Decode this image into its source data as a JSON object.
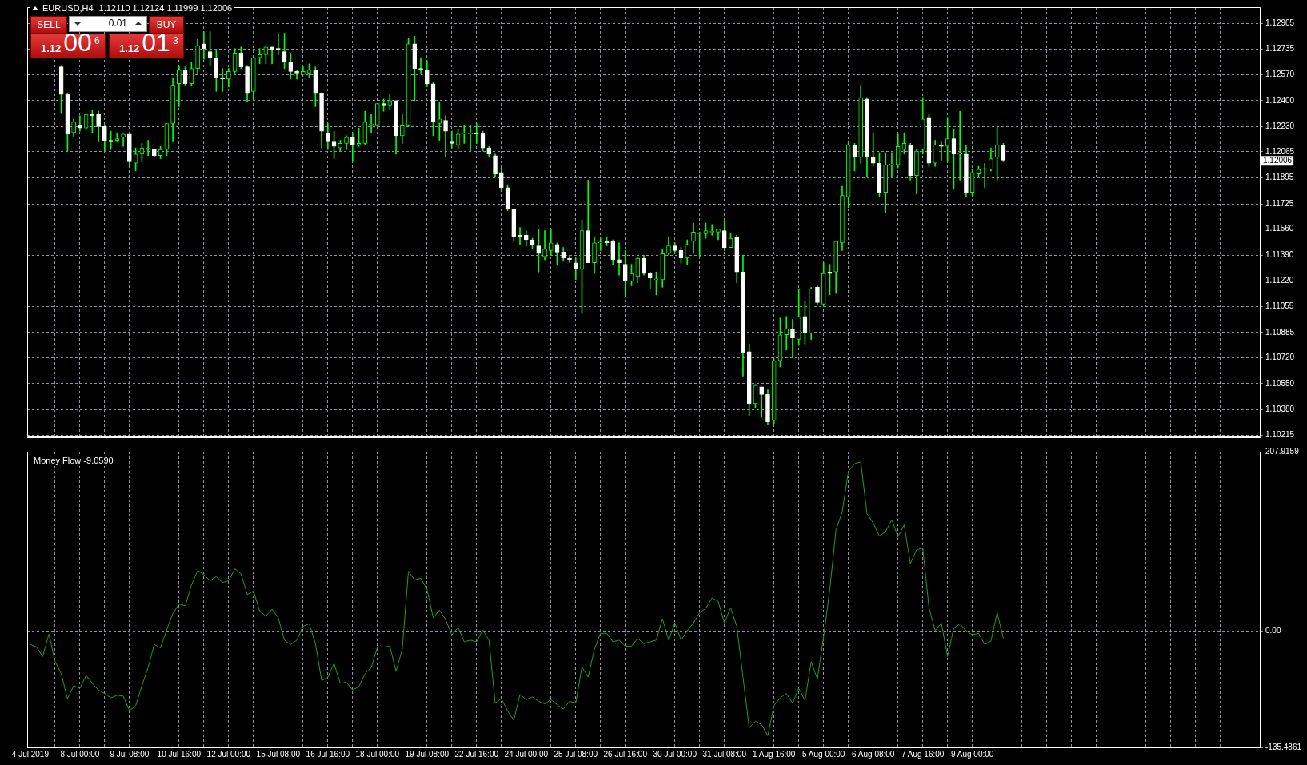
{
  "chart_data": [
    {
      "type": "candlestick",
      "title": "EURUSD,H4",
      "subtitle": "1.12110 1.12124 1.11999 1.12006",
      "color": "#00ff00",
      "categories": [
        null,
        null,
        null,
        null,
        null,
        null,
        null,
        null,
        null,
        null,
        null,
        null,
        null,
        null,
        null,
        null,
        null,
        null,
        null,
        null,
        null,
        null,
        null,
        null,
        null,
        null,
        null,
        null,
        null,
        null,
        null,
        null,
        null,
        null,
        null,
        null,
        null,
        null,
        null,
        null,
        null,
        null,
        null,
        null,
        null,
        null,
        null,
        null,
        null,
        null,
        null,
        null,
        null,
        null,
        null,
        null,
        null,
        null,
        null,
        null,
        null,
        null,
        null,
        null,
        null,
        null,
        null,
        null,
        null,
        null,
        null,
        null,
        null,
        null,
        null,
        null,
        null,
        null,
        null,
        null,
        null,
        null,
        null,
        null,
        null,
        null,
        null,
        null,
        null,
        null,
        null,
        null,
        null,
        null,
        null,
        null,
        null,
        null,
        null,
        null,
        null,
        null,
        null,
        null,
        null,
        null,
        null,
        null,
        null,
        null,
        null,
        null,
        null,
        null,
        null,
        null,
        null,
        null,
        null,
        null,
        null,
        null,
        null,
        null,
        null,
        null,
        null,
        null,
        null,
        null,
        null,
        null,
        null,
        null,
        null,
        null,
        null,
        null,
        null,
        null,
        null,
        null,
        null,
        null,
        null,
        null,
        null,
        null,
        null,
        null,
        null,
        null,
        null,
        null,
        null,
        null,
        null,
        null,
        null,
        null,
        null,
        null,
        null,
        null,
        null,
        null,
        null,
        null,
        null,
        null,
        null,
        null,
        null,
        null,
        null,
        null,
        null,
        null,
        null,
        null,
        null,
        null,
        null,
        null,
        null,
        null,
        null,
        null,
        null,
        null,
        null,
        null,
        null,
        null,
        null,
        null,
        null,
        null,
        null
      ],
      "ohlc": [
        null,
        null,
        null,
        null,
        null,
        [
          1.1262,
          1.1263,
          1.1232,
          1.1244
        ],
        [
          1.1244,
          1.1245,
          1.1207,
          1.1218
        ],
        [
          1.1219,
          1.1228,
          1.1216,
          1.1226
        ],
        [
          1.1224,
          1.123,
          1.122,
          1.1222
        ],
        [
          1.1222,
          1.1231,
          1.1221,
          1.1231
        ],
        [
          1.1231,
          1.1234,
          1.1219,
          1.123
        ],
        [
          1.1231,
          1.1233,
          1.1213,
          1.1223
        ],
        [
          1.1223,
          1.1224,
          1.1207,
          1.1214
        ],
        [
          1.1214,
          1.122,
          1.1208,
          1.1213
        ],
        [
          1.1214,
          1.1219,
          1.1213,
          1.1215
        ],
        [
          1.1216,
          1.1218,
          1.121,
          1.1218
        ],
        [
          1.1218,
          1.1218,
          1.1197,
          1.12
        ],
        [
          1.1199,
          1.1209,
          1.1194,
          1.1205
        ],
        [
          1.1205,
          1.1212,
          1.12,
          1.1209
        ],
        [
          1.1208,
          1.1214,
          1.1204,
          1.1209
        ],
        [
          1.1208,
          1.1208,
          1.1203,
          1.1204
        ],
        [
          1.1204,
          1.121,
          1.1202,
          1.1208
        ],
        [
          1.1208,
          1.1225,
          1.1204,
          1.1225
        ],
        [
          1.1225,
          1.1255,
          1.1213,
          1.125
        ],
        [
          1.1251,
          1.1263,
          1.1236,
          1.126
        ],
        [
          1.126,
          1.1262,
          1.125,
          1.1251
        ],
        [
          1.1251,
          1.1265,
          1.125,
          1.1261
        ],
        [
          1.1261,
          1.128,
          1.1258,
          1.1276
        ],
        [
          1.1277,
          1.1285,
          1.1267,
          1.1274
        ],
        [
          1.1272,
          1.1285,
          1.1263,
          1.1268
        ],
        [
          1.1268,
          1.1273,
          1.1246,
          1.1255
        ],
        [
          1.1255,
          1.1261,
          1.1246,
          1.1254
        ],
        [
          1.1254,
          1.1261,
          1.1249,
          1.1259
        ],
        [
          1.1259,
          1.1274,
          1.1258,
          1.1271
        ],
        [
          1.1271,
          1.1275,
          1.1261,
          1.1262
        ],
        [
          1.1262,
          1.1263,
          1.1239,
          1.1245
        ],
        [
          1.1246,
          1.1268,
          1.124,
          1.1268
        ],
        [
          1.1268,
          1.1274,
          1.1264,
          1.127
        ],
        [
          1.127,
          1.1275,
          1.1264,
          1.1275
        ],
        [
          1.1275,
          1.1275,
          1.1264,
          1.1273
        ],
        [
          1.1274,
          1.1284,
          1.127,
          1.1273
        ],
        [
          1.1272,
          1.1284,
          1.1261,
          1.1265
        ],
        [
          1.1265,
          1.1271,
          1.1254,
          1.1259
        ],
        [
          1.1259,
          1.126,
          1.1254,
          1.1258
        ],
        [
          1.1257,
          1.1262,
          1.1257,
          1.1259
        ],
        [
          1.1258,
          1.1264,
          1.1255,
          1.126
        ],
        [
          1.126,
          1.1262,
          1.1236,
          1.1245
        ],
        [
          1.1245,
          1.1245,
          1.1209,
          1.122
        ],
        [
          1.1219,
          1.1225,
          1.1208,
          1.1213
        ],
        [
          1.1213,
          1.122,
          1.1202,
          1.121
        ],
        [
          1.1209,
          1.1214,
          1.1207,
          1.1212
        ],
        [
          1.1212,
          1.1217,
          1.1208,
          1.1216
        ],
        [
          1.1216,
          1.1219,
          1.12,
          1.1211
        ],
        [
          1.1211,
          1.1222,
          1.121,
          1.1212
        ],
        [
          1.1212,
          1.1233,
          1.1211,
          1.1226
        ],
        [
          1.1224,
          1.1231,
          1.1219,
          1.1224
        ],
        [
          1.1224,
          1.1238,
          1.1223,
          1.1238
        ],
        [
          1.1238,
          1.1241,
          1.1233,
          1.1237
        ],
        [
          1.1237,
          1.1244,
          1.1234,
          1.124
        ],
        [
          1.124,
          1.124,
          1.1205,
          1.1217
        ],
        [
          1.1217,
          1.1231,
          1.1212,
          1.1224
        ],
        [
          1.1224,
          1.1281,
          1.1223,
          1.1277
        ],
        [
          1.1277,
          1.1282,
          1.124,
          1.1261
        ],
        [
          1.1261,
          1.1268,
          1.1258,
          1.126
        ],
        [
          1.126,
          1.1266,
          1.1249,
          1.1251
        ],
        [
          1.1251,
          1.1252,
          1.1217,
          1.1226
        ],
        [
          1.1225,
          1.1239,
          1.1214,
          1.1228
        ],
        [
          1.1227,
          1.123,
          1.1203,
          1.122
        ],
        [
          1.1213,
          1.122,
          1.1209,
          1.1212
        ],
        [
          1.1211,
          1.1221,
          1.1208,
          1.1218
        ],
        [
          1.1218,
          1.1224,
          1.1212,
          1.1218
        ],
        [
          1.1218,
          1.1224,
          1.1207,
          1.1218
        ],
        [
          1.1219,
          1.1225,
          1.1212,
          1.1218
        ],
        [
          1.1219,
          1.122,
          1.1207,
          1.1209
        ],
        [
          1.1209,
          1.121,
          1.1203,
          1.1205
        ],
        [
          1.1204,
          1.1205,
          1.119,
          1.1192
        ],
        [
          1.1193,
          1.1196,
          1.1181,
          1.1183
        ],
        [
          1.1183,
          1.1185,
          1.1168,
          1.1169
        ],
        [
          1.1169,
          1.1169,
          1.1148,
          1.1151
        ],
        [
          1.1152,
          1.1157,
          1.1146,
          1.1151
        ],
        [
          1.1152,
          1.1155,
          1.1145,
          1.1149
        ],
        [
          1.1149,
          1.115,
          1.1143,
          1.1146
        ],
        [
          1.1145,
          1.1156,
          1.1128,
          1.114
        ],
        [
          1.1138,
          1.1155,
          1.1136,
          1.1143
        ],
        [
          1.1142,
          1.1156,
          1.1139,
          1.1147
        ],
        [
          1.1146,
          1.1147,
          1.1133,
          1.1141
        ],
        [
          1.1141,
          1.1144,
          1.1135,
          1.1137
        ],
        [
          1.1137,
          1.1139,
          1.1134,
          1.1136
        ],
        [
          1.1134,
          1.1137,
          1.1123,
          1.113
        ],
        [
          1.113,
          1.1162,
          1.1101,
          1.1155
        ],
        [
          1.1155,
          1.1188,
          1.1134,
          1.1134
        ],
        [
          1.1134,
          1.1151,
          1.1127,
          1.1147
        ],
        [
          1.1147,
          1.115,
          1.1142,
          1.1147
        ],
        [
          1.1148,
          1.1151,
          1.1145,
          1.1147
        ],
        [
          1.1148,
          1.1149,
          1.1133,
          1.1136
        ],
        [
          1.1136,
          1.1147,
          1.1126,
          1.1134
        ],
        [
          1.1133,
          1.1142,
          1.1112,
          1.1122
        ],
        [
          1.1122,
          1.1133,
          1.1119,
          1.1127
        ],
        [
          1.1125,
          1.1138,
          1.1121,
          1.1137
        ],
        [
          1.1137,
          1.1139,
          1.1126,
          1.1127
        ],
        [
          1.1127,
          1.1128,
          1.1117,
          1.1124
        ],
        [
          1.1123,
          1.1128,
          1.1113,
          1.1123
        ],
        [
          1.1123,
          1.1143,
          1.1118,
          1.114
        ],
        [
          1.114,
          1.1151,
          1.1139,
          1.1145
        ],
        [
          1.1145,
          1.1147,
          1.1141,
          1.1142
        ],
        [
          1.1142,
          1.1144,
          1.1134,
          1.1137
        ],
        [
          1.1137,
          1.1149,
          1.1133,
          1.1146
        ],
        [
          1.1148,
          1.116,
          1.114,
          1.1154
        ],
        [
          1.1153,
          1.1154,
          1.1138,
          1.1153
        ],
        [
          1.1153,
          1.116,
          1.115,
          1.1155
        ],
        [
          1.1154,
          1.1159,
          1.1152,
          1.1154
        ],
        [
          1.1154,
          1.1156,
          1.1149,
          1.1156
        ],
        [
          1.1155,
          1.1162,
          1.1142,
          1.1144
        ],
        [
          1.1144,
          1.1153,
          1.1144,
          1.115
        ],
        [
          1.1151,
          1.1152,
          1.1121,
          1.1128
        ],
        [
          1.1128,
          1.1139,
          1.106,
          1.1075
        ],
        [
          1.1076,
          1.1081,
          1.1034,
          1.1042
        ],
        [
          1.1042,
          1.1054,
          1.1039,
          1.1054
        ],
        [
          1.1053,
          1.1053,
          1.1033,
          1.1048
        ],
        [
          1.1048,
          1.1051,
          1.1028,
          1.103
        ],
        [
          1.1031,
          1.1071,
          1.1029,
          1.107
        ],
        [
          1.107,
          1.1098,
          1.1066,
          1.1087
        ],
        [
          1.1087,
          1.1099,
          1.1077,
          1.1091
        ],
        [
          1.1091,
          1.1097,
          1.1072,
          1.1085
        ],
        [
          1.1084,
          1.1117,
          1.108,
          1.1099
        ],
        [
          1.1099,
          1.1109,
          1.1081,
          1.1088
        ],
        [
          1.1088,
          1.1118,
          1.1084,
          1.1117
        ],
        [
          1.1118,
          1.1119,
          1.1107,
          1.1108
        ],
        [
          1.1107,
          1.1134,
          1.1106,
          1.1127
        ],
        [
          1.1128,
          1.1133,
          1.1113,
          1.1127
        ],
        [
          1.1128,
          1.1148,
          1.1114,
          1.1148
        ],
        [
          1.1147,
          1.1184,
          1.1142,
          1.1178
        ],
        [
          1.1177,
          1.1213,
          1.117,
          1.1211
        ],
        [
          1.1211,
          1.1212,
          1.1194,
          1.1203
        ],
        [
          1.1203,
          1.125,
          1.1199,
          1.1242
        ],
        [
          1.1241,
          1.1242,
          1.119,
          1.1203
        ],
        [
          1.1203,
          1.1219,
          1.1197,
          1.1199
        ],
        [
          1.1199,
          1.1206,
          1.1177,
          1.118
        ],
        [
          1.118,
          1.1206,
          1.1167,
          1.1198
        ],
        [
          1.1198,
          1.1206,
          1.119,
          1.1198
        ],
        [
          1.1198,
          1.1218,
          1.1196,
          1.121
        ],
        [
          1.1208,
          1.1219,
          1.1205,
          1.1212
        ],
        [
          1.1211,
          1.1212,
          1.1188,
          1.1191
        ],
        [
          1.1191,
          1.1208,
          1.1179,
          1.1207
        ],
        [
          1.1208,
          1.1242,
          1.1205,
          1.1228
        ],
        [
          1.1229,
          1.1231,
          1.1197,
          1.1199
        ],
        [
          1.1199,
          1.1214,
          1.1197,
          1.1211
        ],
        [
          1.1211,
          1.1213,
          1.1201,
          1.121
        ],
        [
          1.121,
          1.1229,
          1.12,
          1.1215
        ],
        [
          1.1215,
          1.1221,
          1.1182,
          1.1205
        ],
        [
          1.1205,
          1.1233,
          1.1188,
          1.1205
        ],
        [
          1.1205,
          1.1211,
          1.1177,
          1.118
        ],
        [
          1.118,
          1.1195,
          1.1178,
          1.1193
        ],
        [
          1.1192,
          1.1197,
          1.119,
          1.1195
        ],
        [
          1.1195,
          1.1199,
          1.1183,
          1.1195
        ],
        [
          1.1195,
          1.1209,
          1.1194,
          1.1202
        ],
        [
          1.1203,
          1.1223,
          1.1188,
          1.1211
        ],
        [
          1.1211,
          1.1212,
          1.12,
          1.1201
        ],
        null,
        null,
        null,
        null,
        null,
        null,
        null,
        null,
        null,
        null,
        null,
        null,
        null,
        null,
        null,
        null,
        null,
        null,
        null,
        null,
        null,
        null,
        null,
        null,
        null,
        null,
        null,
        null,
        null,
        null,
        null,
        null,
        null,
        null,
        null,
        null,
        null,
        null,
        null,
        null,
        null
      ],
      "colors": [
        null,
        null,
        null,
        null,
        null,
        "#ffffff",
        "#ffffff",
        "#00ff00",
        "#ffffff",
        "#00ff00",
        "#ffffff",
        "#ffffff",
        "#ffffff",
        "#ffffff",
        "#00ff00",
        "#00ff00",
        "#ffffff",
        "#00ff00",
        "#00ff00",
        "#00ff00",
        "#ffffff",
        "#00ff00",
        "#00ff00",
        "#00ff00",
        "#00ff00",
        "#ffffff",
        "#00ff00",
        "#00ff00",
        "#ffffff",
        "#ffffff",
        "#ffffff",
        "#ffffff",
        "#00ff00",
        "#00ff00",
        "#ffffff",
        "#ffffff",
        "#00ff00",
        "#00ff00",
        "#00ff00",
        "#ffffff",
        "#ffffff",
        "#ffffff",
        "#ffffff",
        "#ffffff",
        "#00ff00",
        "#00ff00",
        "#ffffff",
        "#ffffff",
        "#ffffff",
        "#ffffff",
        "#00ff00",
        "#00ff00",
        "#ffffff",
        "#00ff00",
        "#00ff00",
        "#00ff00",
        "#00ff00",
        "#ffffff",
        "#00ff00",
        "#ffffff",
        "#00ff00",
        "#00ff00",
        "#ffffff",
        "#ffffff",
        "#ffffff",
        "#ffffff",
        "#00ff00",
        "#ffffff",
        "#ffffff",
        "#00ff00",
        "#00ff00",
        "#00ff00",
        "#ffffff",
        "#ffffff",
        "#ffffff",
        "#ffffff",
        "#ffffff",
        "#ffffff",
        "#ffffff",
        "#ffffff",
        "#ffffff",
        "#ffffff",
        "#ffffff",
        "#00ff00",
        "#00ff00",
        "#ffffff",
        "#ffffff",
        "#ffffff",
        "#ffffff",
        "#00ff00",
        "#ffffff",
        "#00ff00",
        "#00ff00",
        "#ffffff",
        "#ffffff",
        "#ffffff",
        "#ffffff",
        "#00ff00",
        "#00ff00",
        "#ffffff",
        "#ffffff",
        "#00ff00",
        "#00ff00",
        "#00ff00",
        "#ffffff",
        "#ffffff",
        "#00ff00",
        "#00ff00",
        "#00ff00",
        "#00ff00",
        "#00ff00",
        "#00ff00",
        "#ffffff",
        "#00ff00",
        "#ffffff",
        "#ffffff",
        "#ffffff",
        "#00ff00",
        "#ffffff",
        "#ffffff",
        "#00ff00",
        "#00ff00",
        "#00ff00",
        "#ffffff",
        "#00ff00",
        "#ffffff",
        "#00ff00",
        "#ffffff",
        "#00ff00",
        "#ffffff",
        "#00ff00",
        "#00ff00",
        "#00ff00",
        "#ffffff",
        "#00ff00",
        "#ffffff",
        "#ffffff",
        "#ffffff",
        "#00ff00",
        "#00ff00",
        "#00ff00",
        "#00ff00",
        "#ffffff",
        "#00ff00",
        "#00ff00",
        "#ffffff",
        "#00ff00",
        "#ffffff",
        "#00ff00",
        "#ffffff",
        "#00ff00",
        "#ffffff",
        "#00ff00",
        "#00ff00",
        "#00ff00",
        "#00ff00",
        "#00ff00",
        "#ffffff",
        null,
        null,
        null,
        null,
        null,
        null,
        null,
        null,
        null,
        null,
        null,
        null,
        null,
        null,
        null,
        null,
        null,
        null,
        null,
        null,
        null,
        null,
        null,
        null,
        null,
        null,
        null,
        null,
        null,
        null,
        null,
        null,
        null,
        null,
        null,
        null,
        null,
        null,
        null,
        null,
        null
      ],
      "ylim": [
        1.102,
        1.1301
      ],
      "yticks": [
        1.12905,
        1.12735,
        {
          "value": 1.1257,
          "label": "1.12570"
        },
        {
          "value": 1.124,
          "label": "1.12400"
        },
        {
          "value": 1.1223,
          "label": "1.12230"
        },
        1.12065,
        1.11895,
        1.11725,
        {
          "value": 1.1156,
          "label": "1.11560"
        },
        {
          "value": 1.1139,
          "label": "1.11390"
        },
        {
          "value": 1.1122,
          "label": "1.11220"
        },
        1.11055,
        1.10885,
        {
          "value": 1.1072,
          "label": "1.10720"
        },
        {
          "value": 1.1055,
          "label": "1.10550"
        },
        {
          "value": 1.1038,
          "label": "1.10380"
        },
        1.10215
      ],
      "grid": true,
      "tick_labels": "y",
      "ref_lines": [
        {
          "axis": "y",
          "value": 1.12006,
          "label": "1.12006",
          "color": "#7f8fa6"
        }
      ],
      "annotations": [
        "SELL",
        "0.01",
        "BUY",
        "1.12",
        "00",
        "6",
        "1.12",
        "01",
        "3"
      ]
    },
    {
      "type": "line",
      "title": "Money Flow -9.0590",
      "categories": [
        "4 Jul 2019",
        null,
        null,
        null,
        null,
        null,
        null,
        null,
        "8 Jul 00:00",
        null,
        null,
        null,
        null,
        null,
        null,
        null,
        "9 Jul 08:00",
        null,
        null,
        null,
        null,
        null,
        null,
        null,
        "10 Jul 16:00",
        null,
        null,
        null,
        null,
        null,
        null,
        null,
        "12 Jul 00:00",
        null,
        null,
        null,
        null,
        null,
        null,
        null,
        "15 Jul 08:00",
        null,
        null,
        null,
        null,
        null,
        null,
        null,
        "16 Jul 16:00",
        null,
        null,
        null,
        null,
        null,
        null,
        null,
        "18 Jul 00:00",
        null,
        null,
        null,
        null,
        null,
        null,
        null,
        "19 Jul 08:00",
        null,
        null,
        null,
        null,
        null,
        null,
        null,
        "22 Jul 16:00",
        null,
        null,
        null,
        null,
        null,
        null,
        null,
        "24 Jul 00:00",
        null,
        null,
        null,
        null,
        null,
        null,
        null,
        "25 Jul 08:00",
        null,
        null,
        null,
        null,
        null,
        null,
        null,
        "26 Jul 16:00",
        null,
        null,
        null,
        null,
        null,
        null,
        null,
        "30 Jul 00:00",
        null,
        null,
        null,
        null,
        null,
        null,
        null,
        "31 Jul 08:00",
        null,
        null,
        null,
        null,
        null,
        null,
        null,
        "1 Aug 16:00",
        null,
        null,
        null,
        null,
        null,
        null,
        null,
        "5 Aug 00:00",
        null,
        null,
        null,
        null,
        null,
        null,
        null,
        "6 Aug 08:00",
        null,
        null,
        null,
        null,
        null,
        null,
        null,
        "7 Aug 16:00",
        null,
        null,
        null,
        null,
        null,
        null,
        null,
        "9 Aug 00:00",
        null,
        null,
        null,
        null,
        null,
        null,
        null,
        null,
        null,
        null,
        null,
        null,
        null,
        null,
        null,
        null,
        null,
        null,
        null,
        null,
        null,
        null,
        null,
        null,
        null,
        null,
        null,
        null,
        null,
        null,
        null,
        null,
        null,
        null,
        null,
        null,
        null,
        null,
        null,
        null,
        null,
        null,
        null,
        null,
        null,
        null
      ],
      "series": [
        {
          "color": "#1f9f1f",
          "values": [
            -16,
            -19,
            -30,
            -4,
            -36,
            -50,
            -79,
            -64,
            -67,
            -52,
            -61,
            -69,
            -73,
            -78,
            -75,
            -76,
            -93,
            -87,
            -64,
            -43,
            -16,
            -20,
            1,
            20,
            31,
            29,
            53,
            70,
            65,
            58,
            63,
            56,
            58,
            72,
            66,
            42,
            46,
            23,
            17,
            25,
            15,
            -11,
            -16,
            -11,
            5,
            8,
            -15,
            -58,
            -54,
            -38,
            -61,
            -60,
            -69,
            -65,
            -50,
            -43,
            -19,
            -19,
            -18,
            -47,
            -22,
            69,
            59,
            61,
            48,
            15,
            24,
            13,
            -5,
            4,
            -13,
            -11,
            -13,
            1,
            -11,
            -84,
            -79,
            -93,
            -104,
            -74,
            -80,
            -77,
            -82,
            -85,
            -80,
            -86,
            -91,
            -82,
            -84,
            -42,
            -54,
            -22,
            -3,
            -3,
            -13,
            -11,
            -18,
            -18,
            -9,
            -15,
            -13,
            -11,
            14,
            -11,
            9,
            -11,
            0,
            9,
            21,
            26,
            38,
            34,
            9,
            27,
            5,
            -54,
            -113,
            -105,
            -109,
            -122,
            -87,
            -78,
            -73,
            -84,
            -67,
            -81,
            -36,
            -56,
            -7,
            48,
            117,
            138,
            185,
            194,
            196,
            136,
            125,
            110,
            115,
            129,
            109,
            123,
            78,
            94,
            96,
            27,
            0,
            9,
            -30,
            3,
            8,
            0,
            -5,
            -3,
            -16,
            -12,
            21,
            -9,
            null,
            null,
            null,
            null,
            null,
            null,
            null,
            null,
            null,
            null,
            null,
            null,
            null,
            null,
            null,
            null,
            null,
            null,
            null,
            null,
            null,
            null,
            null,
            null,
            null,
            null,
            null,
            null,
            null,
            null,
            null,
            null,
            null,
            null,
            null,
            null,
            null,
            null,
            null,
            null,
            null
          ]
        }
      ],
      "ylim": [
        -135.4861,
        207.9159
      ],
      "yticks": [
        207.9159,
        {
          "value": 0,
          "label": "0.00"
        },
        -135.4861
      ],
      "grid": true
    }
  ]
}
